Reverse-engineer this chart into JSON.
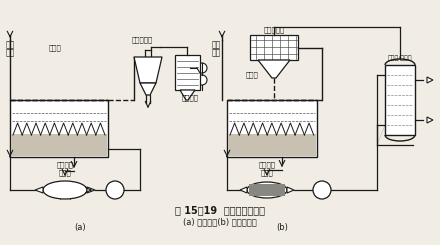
{
  "title": "图 15－19  流化床干燥装置",
  "subtitle": "(a) 开启式；(b) 封闭循环式",
  "label_a": "(a)",
  "label_b": "(b)",
  "bg_color": "#f2ede4",
  "line_color": "#1a1a1a",
  "text_color": "#1a1a1a"
}
